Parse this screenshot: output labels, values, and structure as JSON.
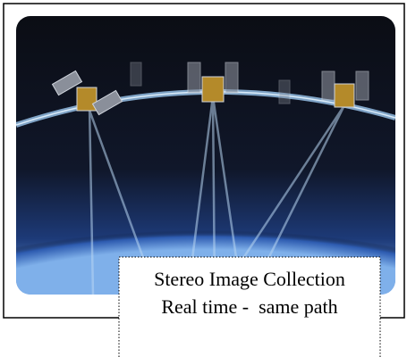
{
  "caption": {
    "lines": [
      "Stereo Image Collection",
      "Real time -  same path"
    ]
  }
}
